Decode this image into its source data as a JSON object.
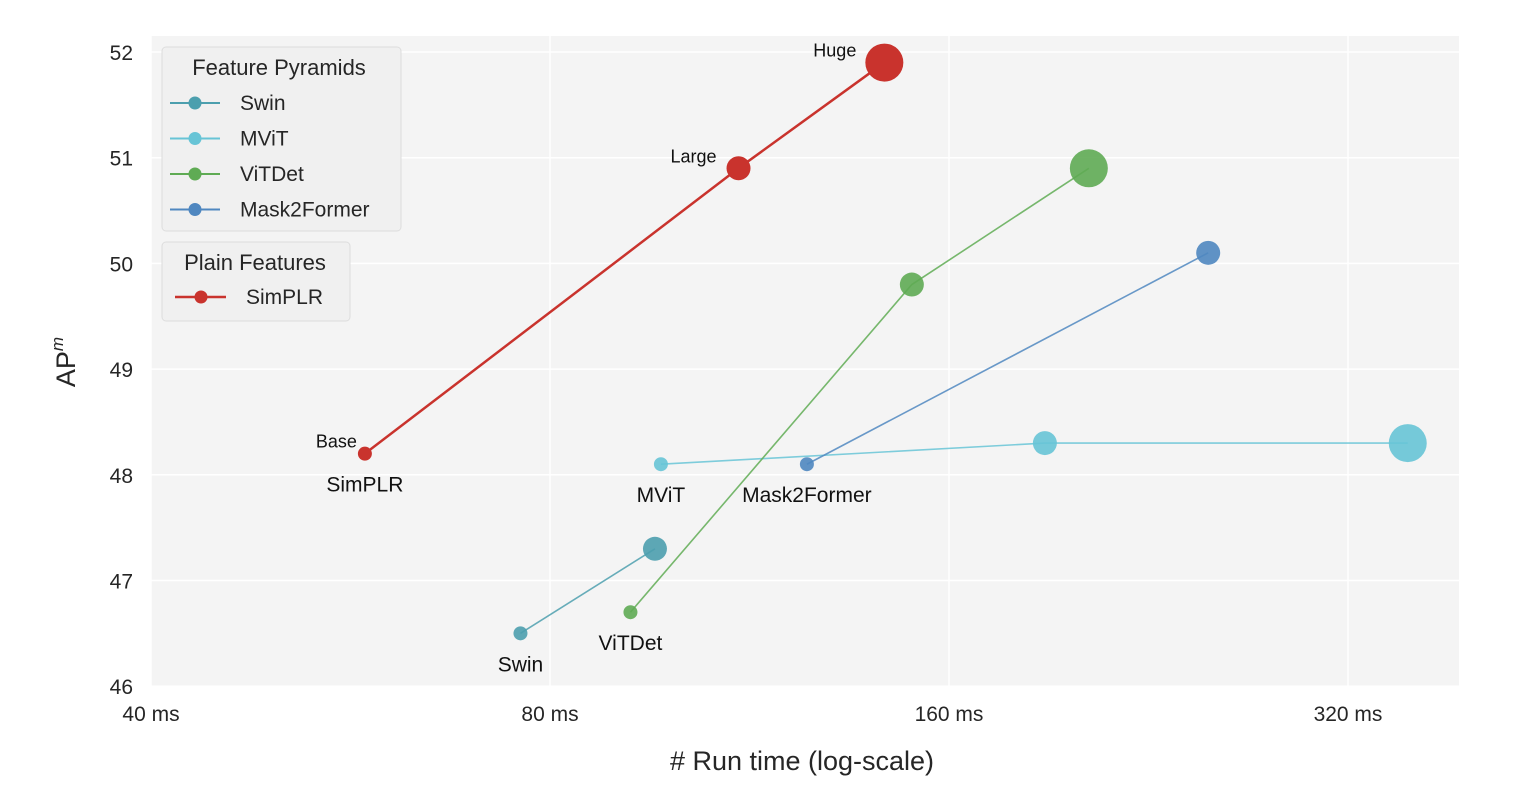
{
  "chart_data": {
    "type": "line",
    "title": "",
    "xlabel": "# Run time (log-scale)",
    "ylabel": "AP^m",
    "xscale": "log2",
    "xlim": [
      40,
      370
    ],
    "ylim": [
      46,
      52
    ],
    "xticks": [
      40,
      80,
      160,
      320
    ],
    "xtick_labels": [
      "40 ms",
      "80 ms",
      "160 ms",
      "320 ms"
    ],
    "yticks": [
      46,
      47,
      48,
      49,
      50,
      51,
      52
    ],
    "ytick_labels": [
      "46",
      "47",
      "48",
      "49",
      "50",
      "51",
      "52"
    ],
    "grid": true,
    "legend_position": "upper left",
    "legend_groups": [
      {
        "title": "Feature Pyramids",
        "entries": [
          "Swin",
          "MViT",
          "ViTDet",
          "Mask2Former"
        ]
      },
      {
        "title": "Plain Features",
        "entries": [
          "SimPLR"
        ]
      }
    ],
    "series": [
      {
        "name": "Swin",
        "group": "Feature Pyramids",
        "color": "#4c9fae",
        "x": [
          76,
          96
        ],
        "y": [
          46.5,
          47.3
        ],
        "sizes": [
          7,
          12
        ],
        "label": "Swin"
      },
      {
        "name": "MViT",
        "group": "Feature Pyramids",
        "color": "#67c4d6",
        "x": [
          97,
          189,
          355
        ],
        "y": [
          48.1,
          48.3,
          48.3
        ],
        "sizes": [
          7,
          12,
          19
        ],
        "label": "MViT"
      },
      {
        "name": "ViTDet",
        "group": "Feature Pyramids",
        "color": "#5fab54",
        "x": [
          92,
          150,
          204
        ],
        "y": [
          46.7,
          49.8,
          50.9
        ],
        "sizes": [
          7,
          12,
          19
        ],
        "label": "ViTDet"
      },
      {
        "name": "Mask2Former",
        "group": "Feature Pyramids",
        "color": "#4f87c0",
        "x": [
          125,
          251
        ],
        "y": [
          48.1,
          50.1
        ],
        "sizes": [
          7,
          12
        ],
        "label": "Mask2Former"
      },
      {
        "name": "SimPLR",
        "group": "Plain Features",
        "color": "#c9332d",
        "x": [
          58,
          111,
          143
        ],
        "y": [
          48.2,
          50.9,
          51.9
        ],
        "sizes": [
          7,
          12,
          19
        ],
        "label": "SimPLR",
        "point_labels": [
          "Base",
          "Large",
          "Huge"
        ]
      }
    ],
    "annotations": [
      "Base",
      "Large",
      "Huge",
      "SimPLR",
      "MViT",
      "Mask2Former",
      "ViTDet",
      "Swin"
    ]
  }
}
